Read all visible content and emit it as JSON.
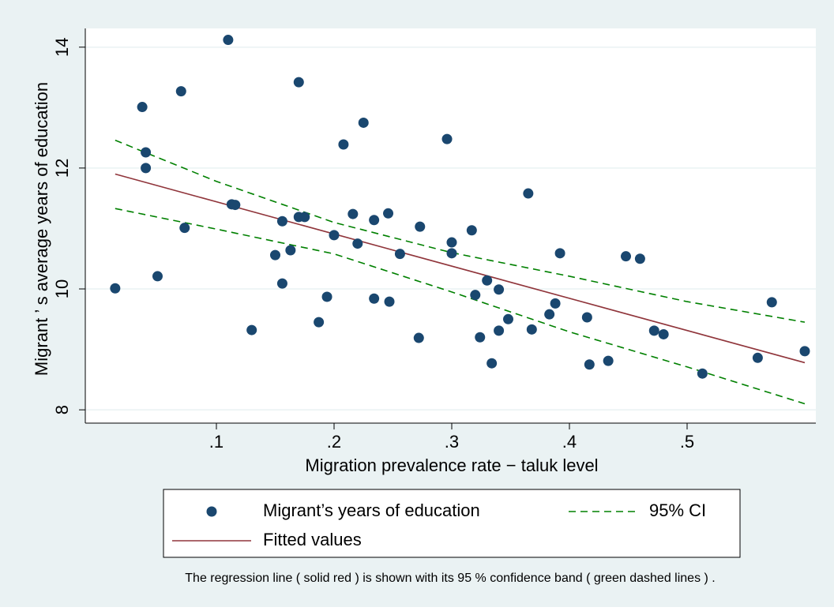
{
  "chart_data": {
    "type": "scatter",
    "x_label": "Migration prevalence rate − taluk level",
    "y_label": "Migrant ’ s average years of education",
    "caption": "The regression line ( solid red ) is shown with its 95 % confidence band ( green dashed lines ) .",
    "xlim": [
      -0.0114,
      0.6094
    ],
    "ylim": [
      7.78,
      14.31
    ],
    "xticks": [
      {
        "value": 0.1,
        "label": ".1"
      },
      {
        "value": 0.2,
        "label": ".2"
      },
      {
        "value": 0.3,
        "label": ".3"
      },
      {
        "value": 0.4,
        "label": ".4"
      },
      {
        "value": 0.5,
        "label": ".5"
      }
    ],
    "yticks": [
      8,
      10,
      12,
      14
    ],
    "grid": true,
    "series": [
      {
        "name": "Migrant’s years of education",
        "kind": "points",
        "color": "#1a476f",
        "x": [
          0.014,
          0.037,
          0.04,
          0.04,
          0.05,
          0.07,
          0.073,
          0.11,
          0.113,
          0.116,
          0.13,
          0.15,
          0.156,
          0.156,
          0.163,
          0.17,
          0.17,
          0.175,
          0.187,
          0.194,
          0.2,
          0.208,
          0.216,
          0.22,
          0.225,
          0.234,
          0.234,
          0.246,
          0.247,
          0.256,
          0.272,
          0.273,
          0.296,
          0.3,
          0.3,
          0.317,
          0.32,
          0.324,
          0.33,
          0.334,
          0.34,
          0.34,
          0.348,
          0.365,
          0.368,
          0.383,
          0.388,
          0.392,
          0.415,
          0.417,
          0.433,
          0.448,
          0.46,
          0.472,
          0.48,
          0.513,
          0.56,
          0.572,
          0.6
        ],
        "values": [
          10.01,
          13.01,
          12.26,
          12.0,
          10.21,
          13.27,
          11.01,
          14.12,
          11.4,
          11.39,
          9.32,
          10.56,
          11.12,
          10.09,
          10.64,
          11.19,
          13.42,
          11.19,
          9.45,
          9.87,
          10.89,
          12.39,
          11.24,
          10.75,
          12.75,
          11.14,
          9.84,
          11.25,
          9.79,
          10.58,
          9.19,
          11.03,
          12.48,
          10.77,
          10.59,
          10.97,
          9.9,
          9.2,
          10.14,
          8.77,
          9.99,
          9.31,
          9.5,
          11.58,
          9.33,
          9.58,
          9.76,
          10.59,
          9.53,
          8.75,
          8.81,
          10.54,
          10.5,
          9.31,
          9.25,
          8.6,
          8.86,
          9.78,
          8.97
        ]
      },
      {
        "name": "95% CI",
        "kind": "band",
        "color": "#008000",
        "x": [
          0.014,
          0.1,
          0.2,
          0.3,
          0.4,
          0.5,
          0.6
        ],
        "values": [
          12.46,
          11.78,
          11.1,
          10.6,
          10.21,
          9.79,
          9.45
        ],
        "lower": [
          11.33,
          10.99,
          10.58,
          9.95,
          9.29,
          8.71,
          8.1
        ]
      },
      {
        "name": "Fitted values",
        "kind": "line",
        "color": "#90353b",
        "x": [
          0.014,
          0.6
        ],
        "values": [
          11.9,
          8.78
        ]
      }
    ]
  }
}
